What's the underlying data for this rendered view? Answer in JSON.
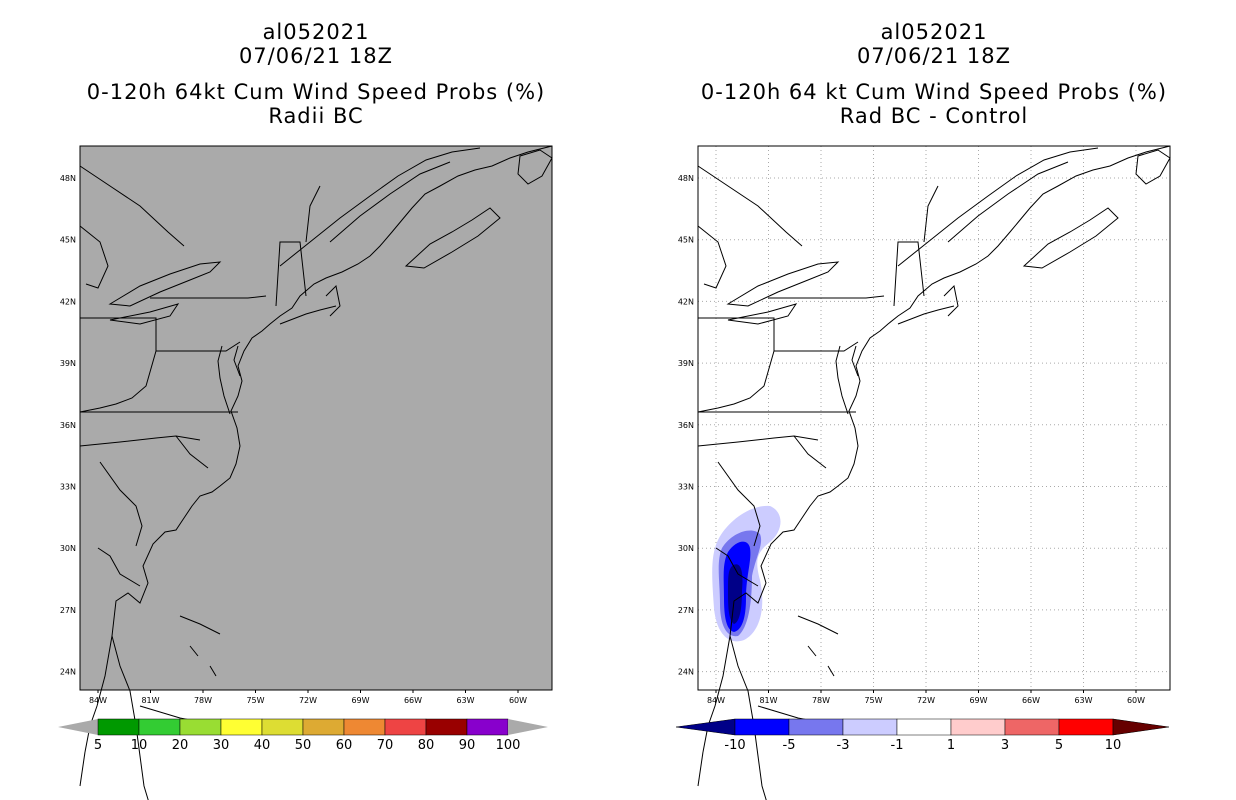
{
  "left": {
    "title_line1": "al052021",
    "title_line2": "07/06/21 18Z",
    "title_line3": "0-120h 64kt Cum Wind Speed Probs (%)",
    "title_line4": "Radii BC",
    "background_color": "#aaaaaa",
    "colorbar": {
      "colors": [
        "#009900",
        "#33cc33",
        "#99dd33",
        "#ffff33",
        "#dddd33",
        "#ddaa33",
        "#ee8833",
        "#ee4444",
        "#990000",
        "#8800cc"
      ],
      "labels": [
        "5",
        "10",
        "20",
        "30",
        "40",
        "50",
        "60",
        "70",
        "80",
        "90",
        "100"
      ]
    }
  },
  "right": {
    "title_line1": "al052021",
    "title_line2": "07/06/21 18Z",
    "title_line3": "0-120h 64 kt Cum Wind Speed Probs (%)",
    "title_line4": "Rad BC - Control",
    "background_color": "#ffffff",
    "colorbar": {
      "colors": [
        "#0000ff",
        "#7777ee",
        "#ccccff",
        "#ffffff",
        "#ffcccc",
        "#ee6666",
        "#ff0000"
      ],
      "end_low": "#000088",
      "end_high": "#660000",
      "labels": [
        "-10",
        "-5",
        "-3",
        "-1",
        "1",
        "3",
        "5",
        "10"
      ]
    }
  },
  "axes": {
    "lon_labels": [
      "84W",
      "81W",
      "78W",
      "75W",
      "72W",
      "69W",
      "66W",
      "63W",
      "60W"
    ],
    "lat_labels": [
      "48N",
      "45N",
      "42N",
      "39N",
      "36N",
      "33N",
      "30N",
      "27N",
      "24N"
    ]
  }
}
